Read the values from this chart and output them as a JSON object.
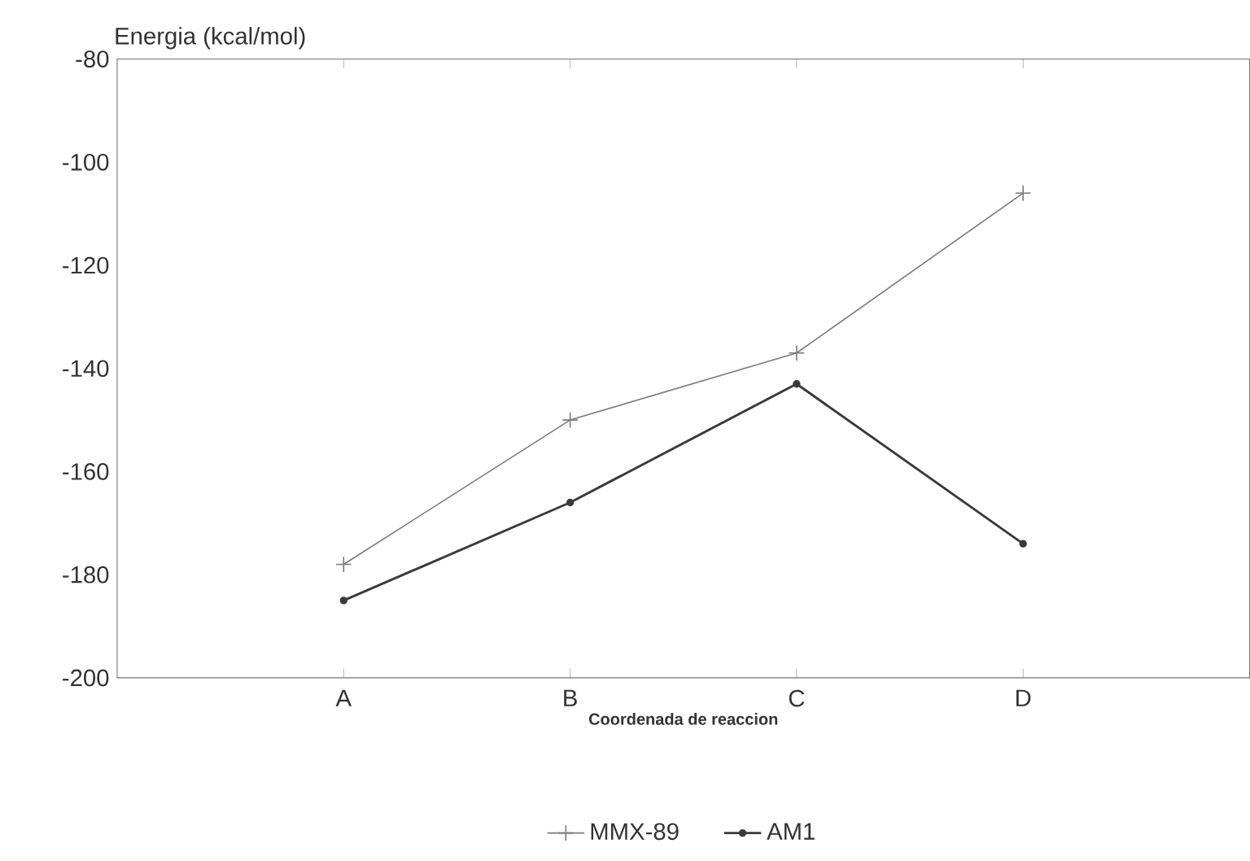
{
  "chart_data": {
    "type": "line",
    "ylabel": "Energia (kcal/mol)",
    "xlabel": "Coordenada de reaccion",
    "categories": [
      "A",
      "B",
      "C",
      "D"
    ],
    "ylim": [
      -200,
      -80
    ],
    "yticks": [
      -200,
      -180,
      -160,
      -140,
      -120,
      -100,
      -80
    ],
    "legend": "bottom",
    "line_style": "solid",
    "series": [
      {
        "name": "MMX-89",
        "color": "#7a7a7a",
        "marker": "cross",
        "values": [
          -178,
          -150,
          -137,
          -106
        ]
      },
      {
        "name": "AM1",
        "color": "#3a3a3a",
        "marker": "circle",
        "values": [
          -185,
          -166,
          -143,
          -174
        ]
      }
    ]
  }
}
